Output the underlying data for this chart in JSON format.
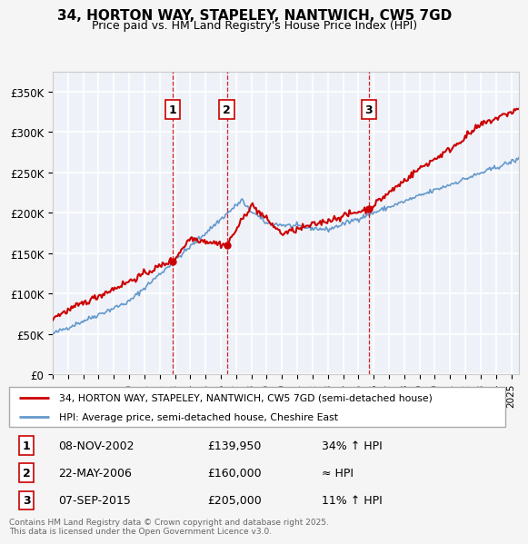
{
  "title": "34, HORTON WAY, STAPELEY, NANTWICH, CW5 7GD",
  "subtitle": "Price paid vs. HM Land Registry's House Price Index (HPI)",
  "ylim": [
    0,
    375000
  ],
  "yticks": [
    0,
    50000,
    100000,
    150000,
    200000,
    250000,
    300000,
    350000
  ],
  "ytick_labels": [
    "£0",
    "£50K",
    "£100K",
    "£150K",
    "£200K",
    "£250K",
    "£300K",
    "£350K"
  ],
  "sale_dates": [
    2002.85,
    2006.39,
    2015.68
  ],
  "sale_prices": [
    139950,
    160000,
    205000
  ],
  "sale_labels": [
    "1",
    "2",
    "3"
  ],
  "hpi_color": "#6699cc",
  "price_color": "#cc0000",
  "dashed_line_color": "#cc0000",
  "plot_bg": "#eef2f8",
  "grid_color": "#ffffff",
  "legend_line1": "34, HORTON WAY, STAPELEY, NANTWICH, CW5 7GD (semi-detached house)",
  "legend_line2": "HPI: Average price, semi-detached house, Cheshire East",
  "table_rows": [
    [
      "1",
      "08-NOV-2002",
      "£139,950",
      "34% ↑ HPI"
    ],
    [
      "2",
      "22-MAY-2006",
      "£160,000",
      "≈ HPI"
    ],
    [
      "3",
      "07-SEP-2015",
      "£205,000",
      "11% ↑ HPI"
    ]
  ],
  "footnote": "Contains HM Land Registry data © Crown copyright and database right 2025.\nThis data is licensed under the Open Government Licence v3.0.",
  "xmin": 1995,
  "xmax": 2025.5
}
